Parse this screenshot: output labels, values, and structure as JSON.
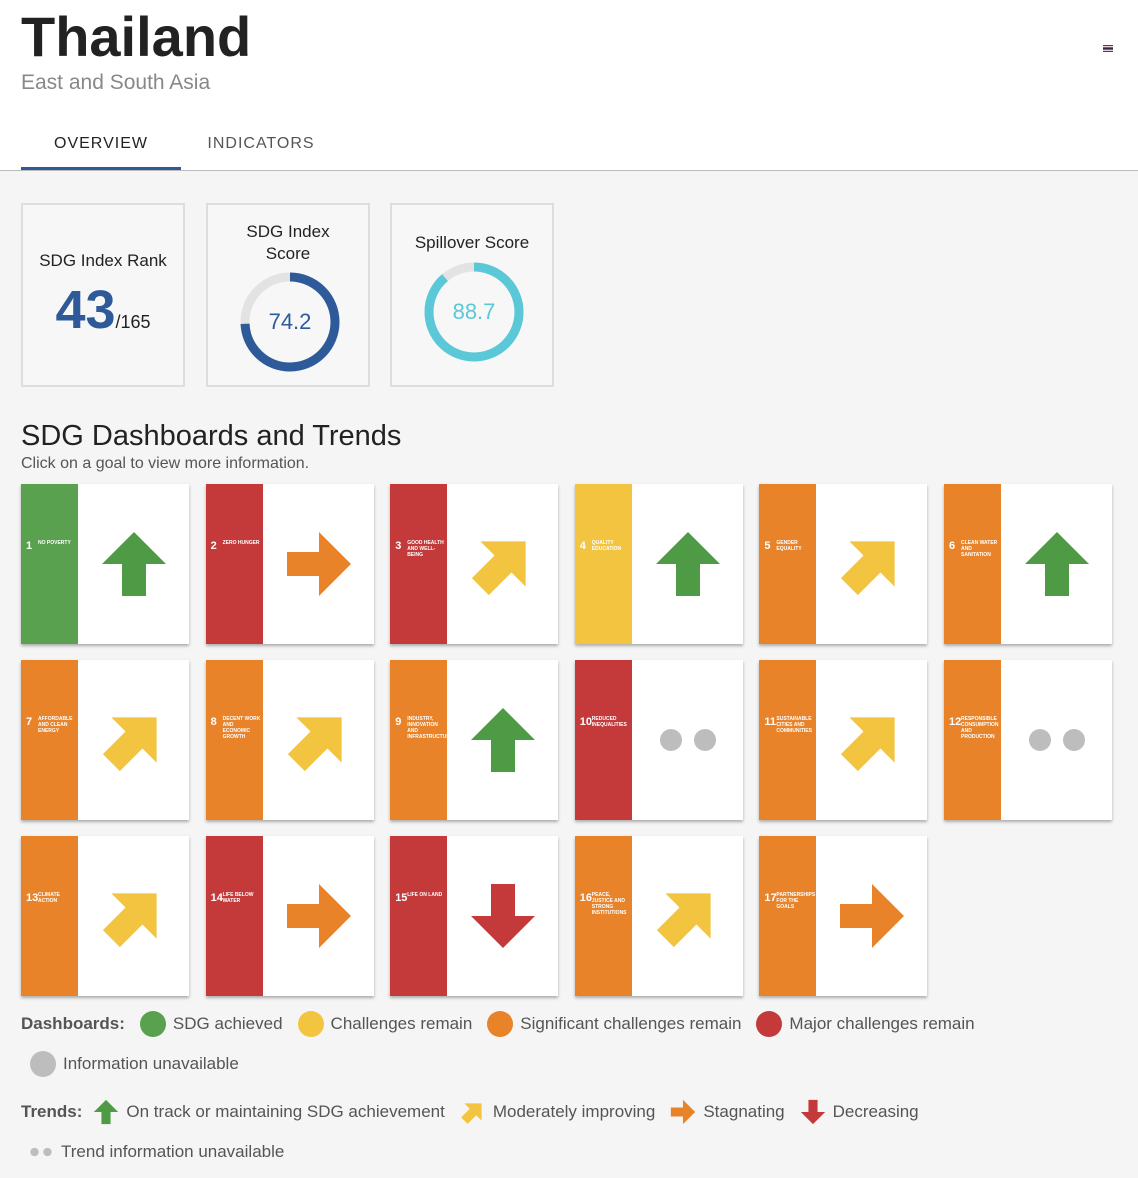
{
  "header": {
    "title": "Thailand",
    "subtitle": "East and South Asia"
  },
  "tabs": [
    "OVERVIEW",
    "INDICATORS"
  ],
  "cards": {
    "rank": {
      "label": "SDG Index Rank",
      "value": 43,
      "total": "/165"
    },
    "score": {
      "label": "SDG Index Score",
      "value": 74.2,
      "range": [
        0,
        100
      ],
      "color": "#2f5a9a"
    },
    "spillover": {
      "label": "Spillover Score",
      "value": 88.7,
      "range": [
        0,
        100
      ],
      "color": "#5bc8d8"
    }
  },
  "section": {
    "title": "SDG Dashboards and Trends",
    "hint": "Click on a goal to view more information."
  },
  "goals": [
    {
      "number": 1,
      "name": "NO POVERTY",
      "color": "#5aa14f",
      "trend": "up"
    },
    {
      "number": 2,
      "name": "ZERO HUNGER",
      "color": "#c4393a",
      "trend": "stagnating"
    },
    {
      "number": 3,
      "name": "GOOD HEALTH AND WELL-BEING",
      "color": "#c4393a",
      "trend": "moderate"
    },
    {
      "number": 4,
      "name": "QUALITY EDUCATION",
      "color": "#f2c440",
      "trend": "up"
    },
    {
      "number": 5,
      "name": "GENDER EQUALITY",
      "color": "#e8832a",
      "trend": "moderate"
    },
    {
      "number": 6,
      "name": "CLEAN WATER AND SANITATION",
      "color": "#e8832a",
      "trend": "up"
    },
    {
      "number": 7,
      "name": "AFFORDABLE AND CLEAN ENERGY",
      "color": "#e8832a",
      "trend": "moderate"
    },
    {
      "number": 8,
      "name": "DECENT WORK AND ECONOMIC GROWTH",
      "color": "#e8832a",
      "trend": "moderate"
    },
    {
      "number": 9,
      "name": "INDUSTRY, INNOVATION AND INFRASTRUCTURE",
      "color": "#e8832a",
      "trend": "up"
    },
    {
      "number": 10,
      "name": "REDUCED INEQUALITIES",
      "color": "#c4393a",
      "trend": "unavailable"
    },
    {
      "number": 11,
      "name": "SUSTAINABLE CITIES AND COMMUNITIES",
      "color": "#e8832a",
      "trend": "moderate"
    },
    {
      "number": 12,
      "name": "RESPONSIBLE CONSUMPTION AND PRODUCTION",
      "color": "#e8832a",
      "trend": "unavailable"
    },
    {
      "number": 13,
      "name": "CLIMATE ACTION",
      "color": "#e8832a",
      "trend": "moderate"
    },
    {
      "number": 14,
      "name": "LIFE BELOW WATER",
      "color": "#c4393a",
      "trend": "stagnating"
    },
    {
      "number": 15,
      "name": "LIFE ON LAND",
      "color": "#c4393a",
      "trend": "down"
    },
    {
      "number": 16,
      "name": "PEACE, JUSTICE AND STRONG INSTITUTIONS",
      "color": "#e8832a",
      "trend": "moderate"
    },
    {
      "number": 17,
      "name": "PARTNERSHIPS FOR THE GOALS",
      "color": "#e8832a",
      "trend": "stagnating"
    }
  ],
  "legend": {
    "dashboards_label": "Dashboards:",
    "dashboards": [
      {
        "label": "SDG achieved",
        "color": "#5aa14f"
      },
      {
        "label": "Challenges remain",
        "color": "#f2c440"
      },
      {
        "label": "Significant challenges remain",
        "color": "#e8832a"
      },
      {
        "label": "Major challenges remain",
        "color": "#c4393a"
      },
      {
        "label": "Information unavailable",
        "color": "#bdbdbd"
      }
    ],
    "trends_label": "Trends:",
    "trends": [
      {
        "label": "On track or maintaining SDG achievement",
        "trend": "up",
        "color": "#4e9a45"
      },
      {
        "label": "Moderately improving",
        "trend": "moderate",
        "color": "#f2c440"
      },
      {
        "label": "Stagnating",
        "trend": "stagnating",
        "color": "#e8832a"
      },
      {
        "label": "Decreasing",
        "trend": "down",
        "color": "#c4393a"
      },
      {
        "label": "Trend information unavailable",
        "trend": "unavailable",
        "color": "#bdbdbd"
      }
    ]
  }
}
